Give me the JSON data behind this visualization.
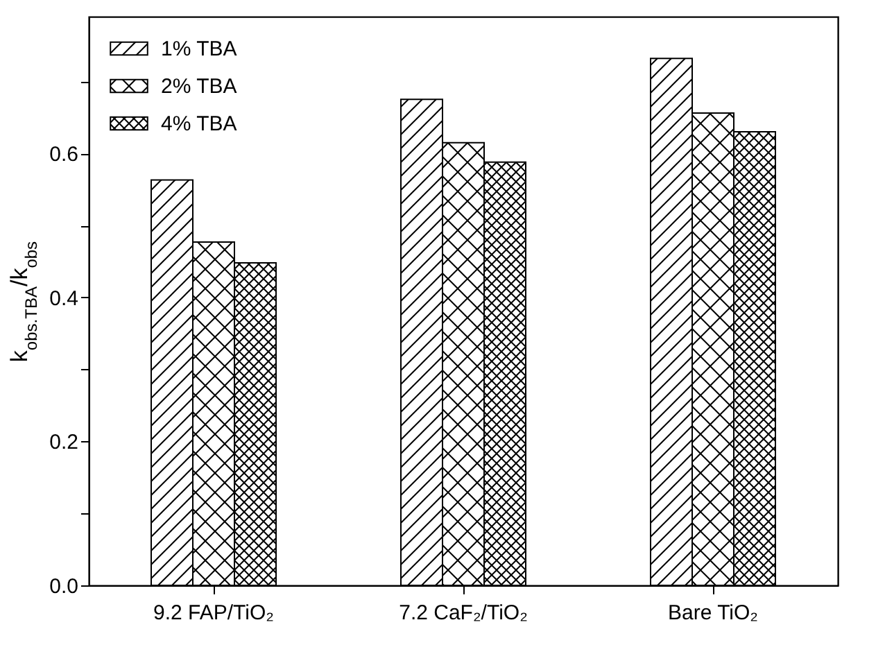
{
  "chart_data": {
    "type": "bar",
    "ylabel": "k$_{obs.TBA}$/k$_{obs}$",
    "categories": [
      "9.2 FAP/TiO₂",
      "7.2 CaF₂/TiO₂",
      "Bare TiO₂"
    ],
    "series": [
      {
        "name": "1% TBA",
        "color": "#000000",
        "values": [
          0.563,
          0.675,
          0.732
        ]
      },
      {
        "name": "2% TBA",
        "color": "#000000",
        "values": [
          0.477,
          0.615,
          0.656
        ]
      },
      {
        "name": "4% TBA",
        "color": "#000000",
        "values": [
          0.448,
          0.588,
          0.63
        ]
      }
    ],
    "ylim": [
      0,
      0.79
    ],
    "yticks": [
      {
        "value": 0,
        "label": "0.0"
      },
      {
        "value": 0.1,
        "label": null
      },
      {
        "value": 0.2,
        "label": "0.2"
      },
      {
        "value": 0.3,
        "label": null
      },
      {
        "value": 0.4,
        "label": "0.4"
      },
      {
        "value": 0.5,
        "label": null
      },
      {
        "value": 0.6,
        "label": "0.6"
      },
      {
        "value": 0.7,
        "label": null
      }
    ],
    "legend": "top left",
    "grid": false
  }
}
